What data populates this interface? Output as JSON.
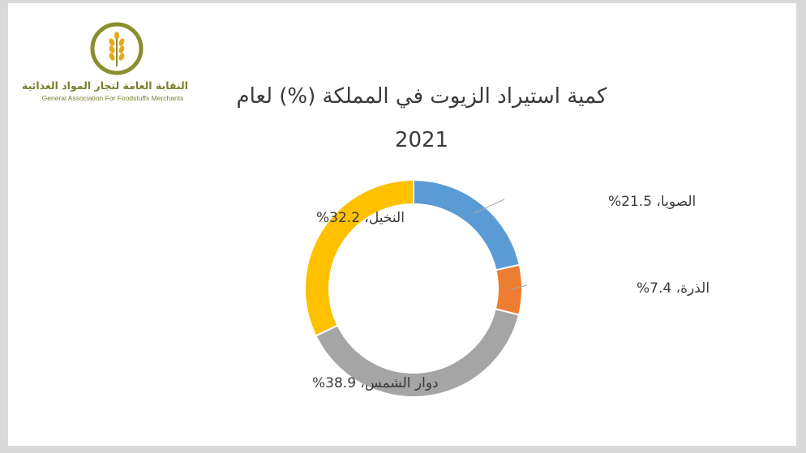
{
  "logo": {
    "name_ar": "النقابة العامة لتجار المواد الغذائية",
    "name_en": "General Association For Foodstuffs Merchants",
    "emblem": "wheat-emblem-icon",
    "color": "#7a7f2c"
  },
  "chart_data": {
    "type": "pie",
    "variant": "donut",
    "title_line1": "كمية استيراد الزيوت في المملكة (%) لعام",
    "title_line2": "2021",
    "slices": [
      {
        "name": "الصويا",
        "value": 21.5,
        "label": "الصويا، 21.5%",
        "color": "#5b9bd5"
      },
      {
        "name": "الذرة",
        "value": 7.4,
        "label": "الذرة، 7.4%",
        "color": "#ed7d31"
      },
      {
        "name": "دوار الشمس",
        "value": 38.9,
        "label": "دوار الشمس، 38.9%",
        "color": "#a5a5a5"
      },
      {
        "name": "النخيل",
        "value": 32.2,
        "label": "النخيل، 32.2%",
        "color": "#ffc000"
      }
    ]
  }
}
